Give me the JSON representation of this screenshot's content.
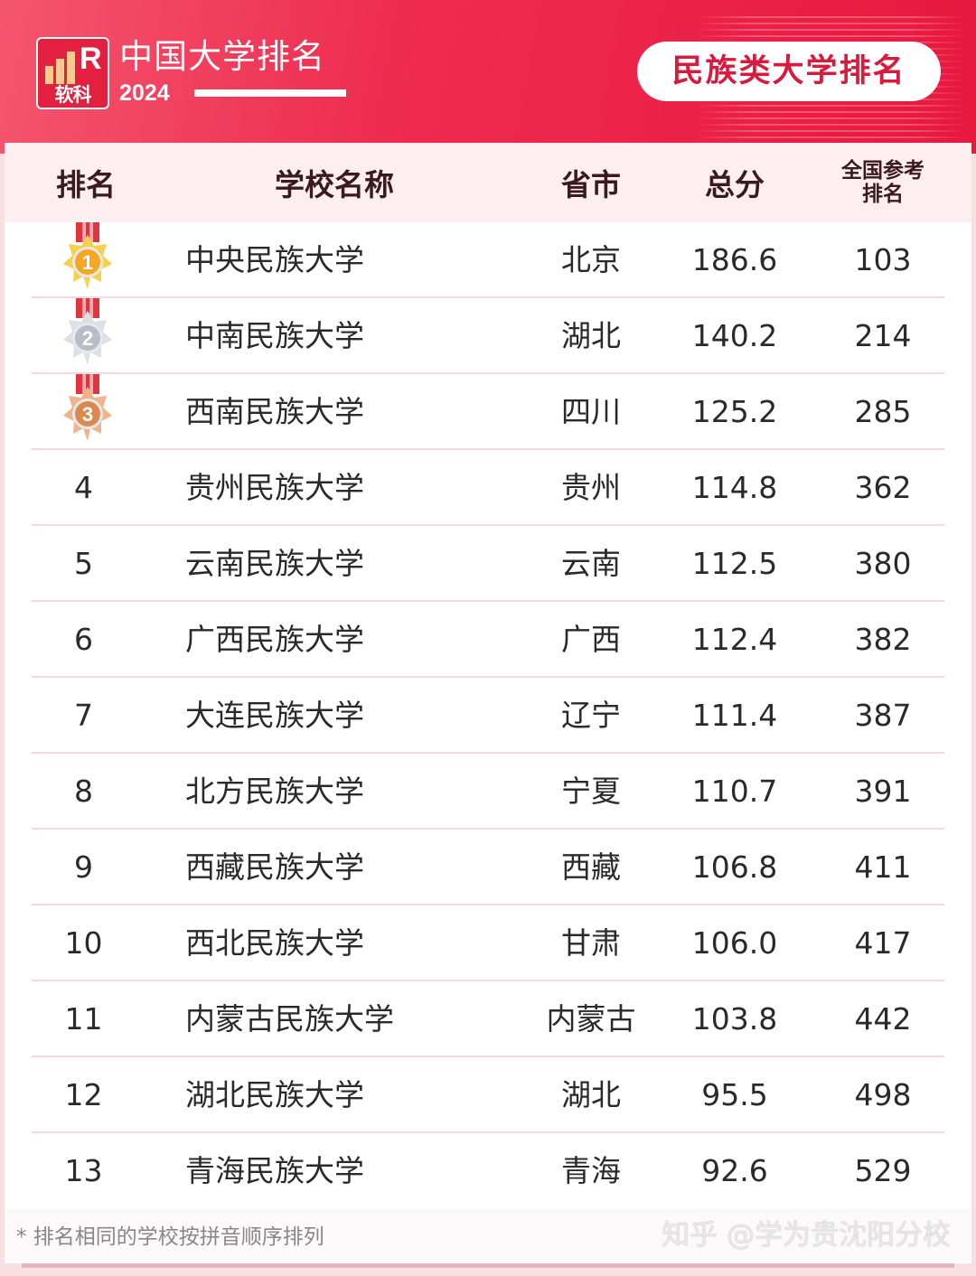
{
  "header": {
    "logo_text": "软科",
    "brand": "中国大学排名",
    "year": "2024",
    "category": "民族类大学排名"
  },
  "columns": [
    "排名",
    "学校名称",
    "省市",
    "总分",
    "全国参考排名"
  ],
  "rows": [
    {
      "rank": "1",
      "medal": "gold",
      "name": "中央民族大学",
      "province": "北京",
      "score": "186.6",
      "national": "103"
    },
    {
      "rank": "2",
      "medal": "silver",
      "name": "中南民族大学",
      "province": "湖北",
      "score": "140.2",
      "national": "214"
    },
    {
      "rank": "3",
      "medal": "bronze",
      "name": "西南民族大学",
      "province": "四川",
      "score": "125.2",
      "national": "285"
    },
    {
      "rank": "4",
      "name": "贵州民族大学",
      "province": "贵州",
      "score": "114.8",
      "national": "362"
    },
    {
      "rank": "5",
      "name": "云南民族大学",
      "province": "云南",
      "score": "112.5",
      "national": "380"
    },
    {
      "rank": "6",
      "name": "广西民族大学",
      "province": "广西",
      "score": "112.4",
      "national": "382"
    },
    {
      "rank": "7",
      "name": "大连民族大学",
      "province": "辽宁",
      "score": "111.4",
      "national": "387"
    },
    {
      "rank": "8",
      "name": "北方民族大学",
      "province": "宁夏",
      "score": "110.7",
      "national": "391"
    },
    {
      "rank": "9",
      "name": "西藏民族大学",
      "province": "西藏",
      "score": "106.8",
      "national": "411"
    },
    {
      "rank": "10",
      "name": "西北民族大学",
      "province": "甘肃",
      "score": "106.0",
      "national": "417"
    },
    {
      "rank": "11",
      "name": "内蒙古民族大学",
      "province": "内蒙古",
      "score": "103.8",
      "national": "442"
    },
    {
      "rank": "12",
      "name": "湖北民族大学",
      "province": "湖北",
      "score": "95.5",
      "national": "498"
    },
    {
      "rank": "13",
      "name": "青海民族大学",
      "province": "青海",
      "score": "92.6",
      "national": "529"
    }
  ],
  "footer": {
    "note": "* 排名相同的学校按拼音顺序排列",
    "watermark": "知乎 @学为贵沈阳分校"
  },
  "colors": {
    "brand_red": "#e8183f",
    "gold": "#f5a623",
    "silver": "#b8bcc6",
    "bronze": "#d98a52"
  }
}
